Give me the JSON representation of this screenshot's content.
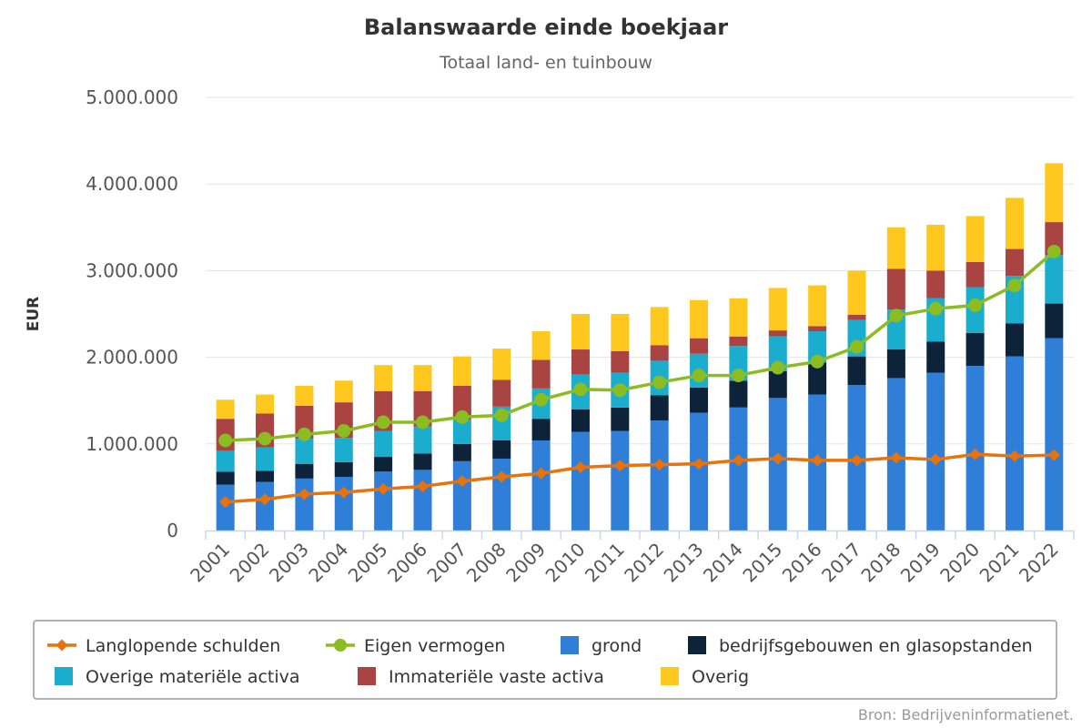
{
  "chart_data": {
    "type": "bar",
    "title": "Balanswaarde einde boekjaar",
    "subtitle": "Totaal land- en tuinbouw",
    "ylabel": "EUR",
    "xlabel": "",
    "ylim": [
      0,
      5000000
    ],
    "yticks": [
      0,
      1000000,
      2000000,
      3000000,
      4000000,
      5000000
    ],
    "ytick_labels": [
      "0",
      "1.000.000",
      "2.000.000",
      "3.000.000",
      "4.000.000",
      "5.000.000"
    ],
    "grid": true,
    "legend_position": "bottom",
    "categories": [
      "2001",
      "2002",
      "2003",
      "2004",
      "2005",
      "2006",
      "2007",
      "2008",
      "2009",
      "2010",
      "2011",
      "2012",
      "2013",
      "2014",
      "2015",
      "2016",
      "2017",
      "2018",
      "2019",
      "2020",
      "2021",
      "2022"
    ],
    "stacked_series": [
      {
        "name": "grond",
        "color": "#2f7ed8",
        "values": [
          530000,
          560000,
          600000,
          620000,
          680000,
          700000,
          800000,
          830000,
          1040000,
          1140000,
          1150000,
          1270000,
          1360000,
          1420000,
          1530000,
          1570000,
          1680000,
          1760000,
          1820000,
          1900000,
          2010000,
          2220000
        ]
      },
      {
        "name": "bedrijfsgebouwen en glasopstanden",
        "color": "#0d233a",
        "values": [
          150000,
          130000,
          170000,
          170000,
          170000,
          190000,
          200000,
          210000,
          250000,
          260000,
          270000,
          290000,
          290000,
          310000,
          310000,
          370000,
          330000,
          330000,
          360000,
          380000,
          380000,
          400000
        ]
      },
      {
        "name": "Overige materiële activa",
        "color": "#1aadce",
        "values": [
          240000,
          270000,
          290000,
          280000,
          300000,
          310000,
          280000,
          390000,
          350000,
          400000,
          400000,
          400000,
          390000,
          400000,
          400000,
          360000,
          420000,
          460000,
          500000,
          530000,
          550000,
          560000
        ]
      },
      {
        "name": "Immateriële vaste activa",
        "color": "#a94442",
        "values": [
          370000,
          390000,
          380000,
          410000,
          460000,
          410000,
          390000,
          310000,
          330000,
          290000,
          250000,
          180000,
          180000,
          110000,
          70000,
          60000,
          60000,
          470000,
          320000,
          290000,
          310000,
          380000
        ]
      },
      {
        "name": "Overig",
        "color": "#ffc81f",
        "values": [
          220000,
          220000,
          230000,
          250000,
          300000,
          300000,
          340000,
          360000,
          330000,
          410000,
          430000,
          440000,
          440000,
          440000,
          490000,
          470000,
          510000,
          480000,
          530000,
          530000,
          590000,
          680000
        ]
      }
    ],
    "line_series": [
      {
        "name": "Langlopende schulden",
        "color": "#e8730c",
        "marker": "diamond",
        "values": [
          330000,
          360000,
          420000,
          440000,
          480000,
          510000,
          570000,
          620000,
          660000,
          730000,
          750000,
          760000,
          770000,
          810000,
          830000,
          810000,
          810000,
          840000,
          820000,
          880000,
          860000,
          870000
        ]
      },
      {
        "name": "Eigen vermogen",
        "color": "#8bbc21",
        "marker": "circle",
        "values": [
          1040000,
          1060000,
          1110000,
          1150000,
          1250000,
          1250000,
          1310000,
          1330000,
          1510000,
          1630000,
          1620000,
          1710000,
          1790000,
          1790000,
          1880000,
          1950000,
          2120000,
          2480000,
          2560000,
          2600000,
          2830000,
          3220000
        ]
      }
    ],
    "legend_order": [
      "Langlopende schulden",
      "Eigen vermogen",
      "grond",
      "bedrijfsgebouwen en glasopstanden",
      "Overige materiële activa",
      "Immateriële vaste activa",
      "Overig"
    ],
    "credit": "Bron: Bedrijveninformatienet."
  }
}
